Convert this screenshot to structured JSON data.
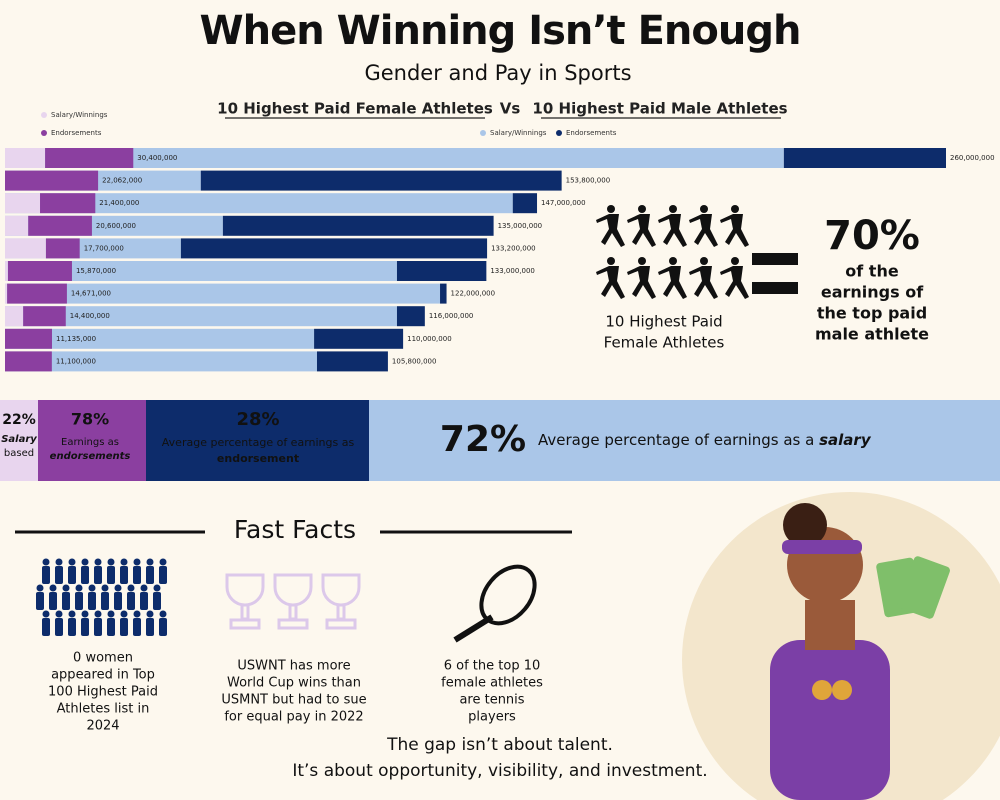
{
  "header": {
    "title": "When Winning Isn’t Enough",
    "subtitle": "Gender and Pay in Sports"
  },
  "vs": "Vs",
  "chart_data": [
    {
      "type": "bar",
      "orientation": "horizontal",
      "stacked": true,
      "title": "10 Highest Paid Female Athletes",
      "series": [
        {
          "name": "Salary/Winnings",
          "color": "#e8d5ee",
          "values": [
            9500000,
            0,
            8300000,
            5500000,
            9700000,
            700000,
            500000,
            4300000,
            0,
            0
          ]
        },
        {
          "name": "Endorsements",
          "color": "#8b3fa0",
          "values": [
            20900000,
            22062000,
            13100000,
            15100000,
            8000000,
            15170000,
            14171000,
            10100000,
            11135000,
            11100000
          ]
        }
      ],
      "total_labels": [
        "30,400,000",
        "22,062,000",
        "21,400,000",
        "20,600,000",
        "17,700,000",
        "15,870,000",
        "14,671,000",
        "14,400,000",
        "11,135,000",
        "11,100,000"
      ],
      "xlim": [
        0,
        223000000
      ]
    },
    {
      "type": "bar",
      "orientation": "horizontal",
      "stacked": true,
      "title": "10 Highest Paid Male Athletes",
      "series": [
        {
          "name": "Salary/Winnings",
          "color": "#aac6e8",
          "values": [
            215200000,
            54100000,
            140300000,
            60200000,
            48600000,
            108300000,
            120200000,
            108300000,
            85400000,
            86200000
          ]
        },
        {
          "name": "Endorsements",
          "color": "#0d2c6b",
          "values": [
            44800000,
            99700000,
            6700000,
            74800000,
            84600000,
            24700000,
            1800000,
            7700000,
            24600000,
            19600000
          ]
        }
      ],
      "total_labels": [
        "260,000,000",
        "153,800,000",
        "147,000,000",
        "135,000,000",
        "133,200,000",
        "133,000,000",
        "122,000,000",
        "116,000,000",
        "110,000,000",
        "105,800,000"
      ],
      "xlim": [
        0,
        260000000
      ]
    }
  ],
  "comparison": {
    "caption": [
      "10 Highest Paid",
      "Female Athletes"
    ],
    "percent": "70%",
    "text": [
      "of the",
      "earnings of",
      "the top paid",
      "male athlete"
    ]
  },
  "stats": [
    {
      "percent": "22%",
      "parts": [
        "Salary",
        "based"
      ]
    },
    {
      "percent": "78%",
      "parts": [
        "Earnings as",
        "endorsements"
      ]
    },
    {
      "percent": "28%",
      "parts": [
        "Average percentage of earnings as",
        "endorsement"
      ]
    },
    {
      "percent": "72%",
      "parts": [
        "Average percentage of earnings as a ",
        "salary"
      ]
    }
  ],
  "fast_facts": {
    "title": "Fast Facts",
    "facts": [
      [
        "0 women",
        "appeared in Top",
        "100 Highest Paid",
        "Athletes list in",
        "2024"
      ],
      [
        "USWNT has more",
        "World Cup wins than",
        "USMNT but had to sue",
        "for equal pay in 2022"
      ],
      [
        "6 of the top 10",
        "female athletes",
        "are tennis",
        "players"
      ]
    ]
  },
  "footer": [
    "The gap isn’t about talent.",
    "It’s about opportunity, visibility, and investment."
  ]
}
